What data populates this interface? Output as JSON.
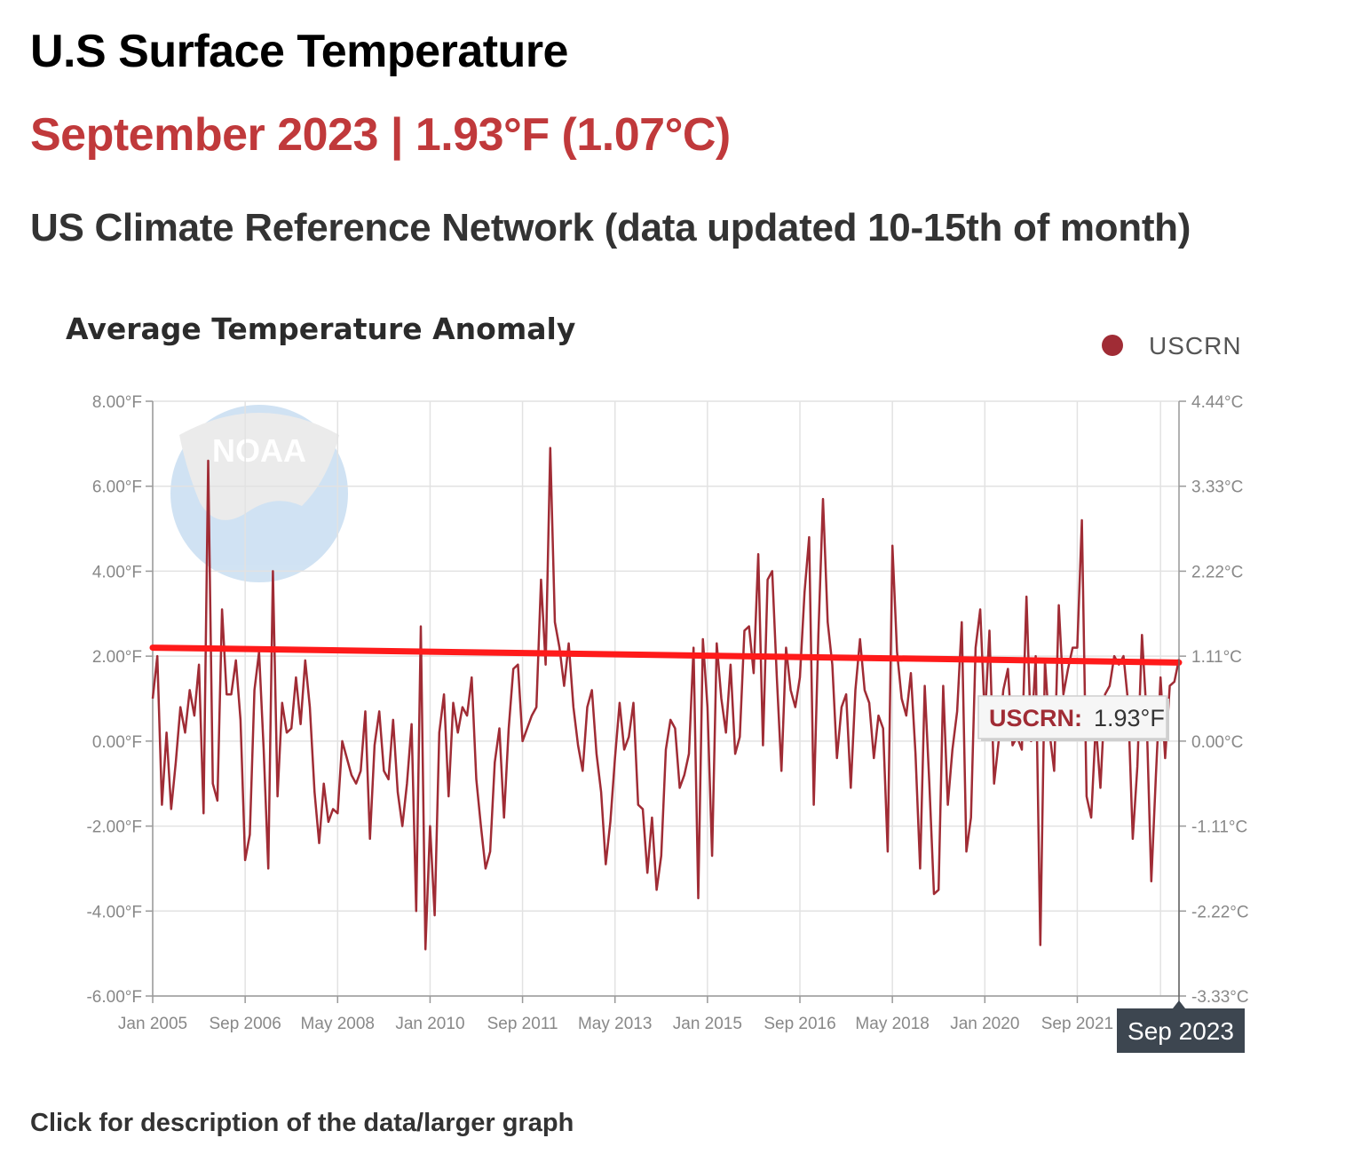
{
  "header": {
    "title": "U.S Surface Temperature",
    "subtitle": "September 2023 | 1.93°F (1.07°C)",
    "network": "US Climate Reference Network (data updated 10-15th of month)"
  },
  "footer": {
    "link": "Click for description of the data/larger graph"
  },
  "colors": {
    "series": "#a02c35",
    "trend": "#ff1a1a",
    "subtitle": "#c0393b",
    "flag_bg": "#3d4650"
  },
  "watermark": {
    "text": "NOAA"
  },
  "chart_data": {
    "type": "line",
    "title": "Average Temperature Anomaly",
    "legend": {
      "label": "USCRN",
      "placement": "top-right"
    },
    "ylim": [
      -6,
      8
    ],
    "y_ticks_left": [
      "8.00°F",
      "6.00°F",
      "4.00°F",
      "2.00°F",
      "0.00°F",
      "-2.00°F",
      "-4.00°F",
      "-6.00°F"
    ],
    "y_ticks_right": [
      "4.44°C",
      "3.33°C",
      "2.22°C",
      "1.11°C",
      "0.00°C",
      "-1.11°C",
      "-2.22°C",
      "-3.33°C"
    ],
    "x_ticks": [
      "Jan 2005",
      "Sep 2006",
      "May 2008",
      "Jan 2010",
      "Sep 2011",
      "May 2013",
      "Jan 2015",
      "Sep 2016",
      "May 2018",
      "Jan 2020",
      "Sep 2021"
    ],
    "x_highlight": "Sep 2023",
    "start": "Jan 2005",
    "end": "Sep 2023",
    "tooltip": {
      "label": "USCRN:",
      "value": "1.93°F"
    },
    "trend": {
      "start": 2.2,
      "end": 1.85
    },
    "series": [
      {
        "name": "USCRN",
        "values": [
          1.0,
          2.0,
          -1.5,
          0.2,
          -1.6,
          -0.5,
          0.8,
          0.2,
          1.2,
          0.6,
          1.8,
          -1.7,
          6.6,
          -1.0,
          -1.4,
          3.1,
          1.1,
          1.1,
          1.9,
          0.5,
          -2.8,
          -2.2,
          1.2,
          2.1,
          -0.2,
          -3.0,
          4.0,
          -1.3,
          0.9,
          0.2,
          0.3,
          1.5,
          0.4,
          1.9,
          0.8,
          -1.2,
          -2.4,
          -1.0,
          -1.9,
          -1.6,
          -1.7,
          0.0,
          -0.4,
          -0.8,
          -1.0,
          -0.7,
          0.7,
          -2.3,
          -0.1,
          0.7,
          -0.7,
          -0.9,
          0.5,
          -1.2,
          -2.0,
          -1.0,
          0.4,
          -4.0,
          2.7,
          -4.9,
          -2.0,
          -4.1,
          0.2,
          1.1,
          -1.3,
          0.9,
          0.2,
          0.8,
          0.6,
          1.5,
          -0.9,
          -2.0,
          -3.0,
          -2.6,
          -0.5,
          0.3,
          -1.8,
          0.3,
          1.7,
          1.8,
          0.0,
          0.3,
          0.6,
          0.8,
          3.8,
          1.8,
          6.9,
          2.8,
          2.2,
          1.3,
          2.3,
          0.8,
          -0.1,
          -0.7,
          0.8,
          1.2,
          -0.3,
          -1.2,
          -2.9,
          -1.9,
          -0.4,
          0.9,
          -0.2,
          0.1,
          0.9,
          -1.5,
          -1.6,
          -3.1,
          -1.8,
          -3.5,
          -2.7,
          -0.2,
          0.5,
          0.3,
          -1.1,
          -0.8,
          -0.3,
          2.2,
          -3.7,
          2.4,
          0.8,
          -2.7,
          2.3,
          1.0,
          0.2,
          1.8,
          -0.3,
          0.1,
          2.6,
          2.7,
          1.6,
          4.4,
          -0.1,
          3.8,
          4.0,
          1.5,
          -0.7,
          2.2,
          1.2,
          0.8,
          1.5,
          3.5,
          4.8,
          -1.5,
          2.5,
          5.7,
          2.8,
          1.8,
          -0.4,
          0.8,
          1.1,
          -1.1,
          1.2,
          2.4,
          1.2,
          0.9,
          -0.4,
          0.6,
          0.3,
          -2.6,
          4.6,
          2.1,
          1.0,
          0.6,
          1.6,
          -0.3,
          -3.0,
          1.3,
          -1.0,
          -3.6,
          -3.5,
          1.3,
          -1.5,
          -0.2,
          0.7,
          2.8,
          -2.6,
          -1.8,
          2.2,
          3.1,
          0.5,
          2.6,
          -1.0,
          0.0,
          1.2,
          1.7,
          -0.1,
          0.1,
          -0.2,
          3.4,
          0.0,
          2.0,
          -4.8,
          1.9,
          0.2,
          -0.7,
          3.2,
          1.1,
          1.7,
          2.2,
          2.2,
          5.2,
          -1.3,
          -1.8,
          0.4,
          -1.1,
          1.1,
          1.3,
          2.0,
          1.8,
          2.0,
          0.9,
          -2.3,
          -0.6,
          2.5,
          0.6,
          -3.3,
          -0.8,
          1.5,
          -0.4,
          1.3,
          1.4,
          1.93
        ]
      }
    ]
  }
}
